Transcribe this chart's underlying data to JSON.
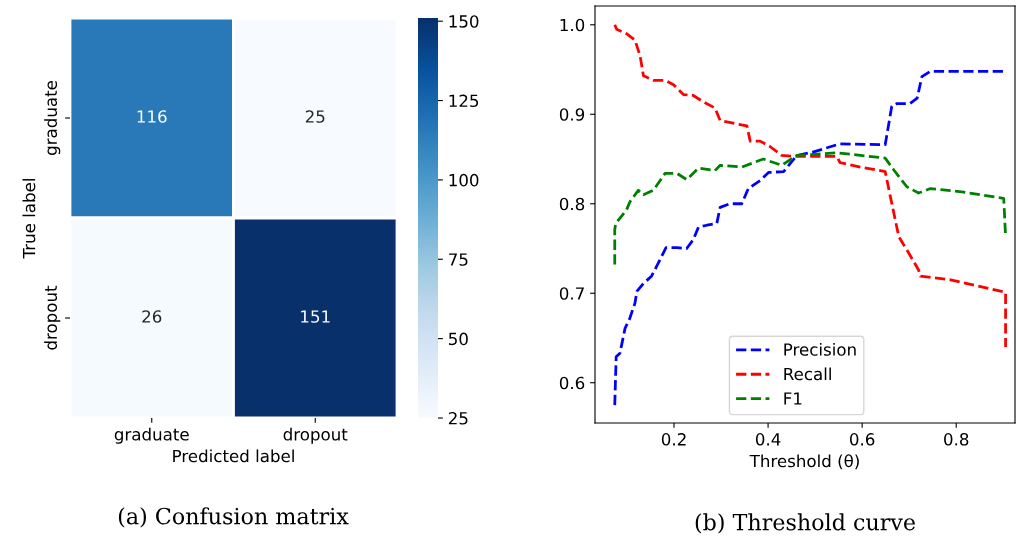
{
  "chart_data": [
    {
      "type": "heatmap",
      "title": "(a) Confusion matrix",
      "xlabel": "Predicted label",
      "ylabel": "True label",
      "categories": [
        "graduate",
        "dropout"
      ],
      "y_categories": [
        "graduate",
        "dropout"
      ],
      "cells": [
        [
          116,
          25
        ],
        [
          26,
          151
        ]
      ],
      "data_labels": true,
      "clim": [
        25,
        151
      ],
      "cticks": [
        25,
        50,
        75,
        100,
        125,
        150
      ]
    },
    {
      "type": "line",
      "title": "(b) Threshold curve",
      "xlabel": "Threshold (θ)",
      "line_style": "dashed",
      "grid": false,
      "legend": "bottom",
      "xlim": [
        0.032,
        0.925
      ],
      "ylim": [
        0.555,
        1.021
      ],
      "xticks": [
        0.2,
        0.4,
        0.6,
        0.8
      ],
      "yticks": [
        0.6,
        0.7,
        0.8,
        0.9,
        {
          "value": 1.0,
          "label": "1.0"
        }
      ],
      "series": [
        {
          "name": "Precision",
          "color": "#0000ff",
          "x": [
            0.074,
            0.077,
            0.085,
            0.096,
            0.106,
            0.117,
            0.121,
            0.135,
            0.152,
            0.163,
            0.183,
            0.206,
            0.227,
            0.241,
            0.252,
            0.27,
            0.291,
            0.298,
            0.319,
            0.344,
            0.358,
            0.383,
            0.401,
            0.433,
            0.461,
            0.497,
            0.553,
            0.649,
            0.663,
            0.674,
            0.702,
            0.717,
            0.727,
            0.745,
            0.816,
            0.905
          ],
          "values": [
            0.575,
            0.629,
            0.633,
            0.661,
            0.672,
            0.689,
            0.702,
            0.711,
            0.719,
            0.73,
            0.751,
            0.751,
            0.75,
            0.76,
            0.774,
            0.776,
            0.778,
            0.796,
            0.8,
            0.8,
            0.817,
            0.826,
            0.835,
            0.836,
            0.854,
            0.858,
            0.867,
            0.866,
            0.909,
            0.912,
            0.912,
            0.918,
            0.942,
            0.948,
            0.948,
            0.948
          ]
        },
        {
          "name": "Recall",
          "color": "#ff0000",
          "x": [
            0.074,
            0.078,
            0.099,
            0.117,
            0.128,
            0.135,
            0.156,
            0.181,
            0.199,
            0.22,
            0.241,
            0.262,
            0.287,
            0.298,
            0.326,
            0.355,
            0.362,
            0.383,
            0.404,
            0.429,
            0.454,
            0.546,
            0.553,
            0.596,
            0.649,
            0.66,
            0.678,
            0.699,
            0.72,
            0.724,
            0.788,
            0.905,
            0.905
          ],
          "values": [
            1.0,
            0.995,
            0.99,
            0.983,
            0.965,
            0.943,
            0.938,
            0.938,
            0.933,
            0.922,
            0.921,
            0.914,
            0.907,
            0.893,
            0.89,
            0.887,
            0.87,
            0.87,
            0.864,
            0.854,
            0.853,
            0.853,
            0.846,
            0.841,
            0.836,
            0.808,
            0.763,
            0.745,
            0.726,
            0.719,
            0.715,
            0.701,
            0.64
          ]
        },
        {
          "name": "F1",
          "color": "#008000",
          "x": [
            0.074,
            0.074,
            0.076,
            0.099,
            0.106,
            0.124,
            0.135,
            0.156,
            0.181,
            0.206,
            0.227,
            0.252,
            0.287,
            0.298,
            0.344,
            0.39,
            0.429,
            0.461,
            0.546,
            0.649,
            0.667,
            0.695,
            0.72,
            0.745,
            0.816,
            0.901,
            0.905
          ],
          "values": [
            0.732,
            0.771,
            0.778,
            0.793,
            0.802,
            0.815,
            0.81,
            0.815,
            0.834,
            0.834,
            0.827,
            0.84,
            0.837,
            0.843,
            0.841,
            0.85,
            0.843,
            0.854,
            0.857,
            0.851,
            0.838,
            0.819,
            0.812,
            0.817,
            0.813,
            0.806,
            0.763
          ]
        }
      ]
    }
  ]
}
